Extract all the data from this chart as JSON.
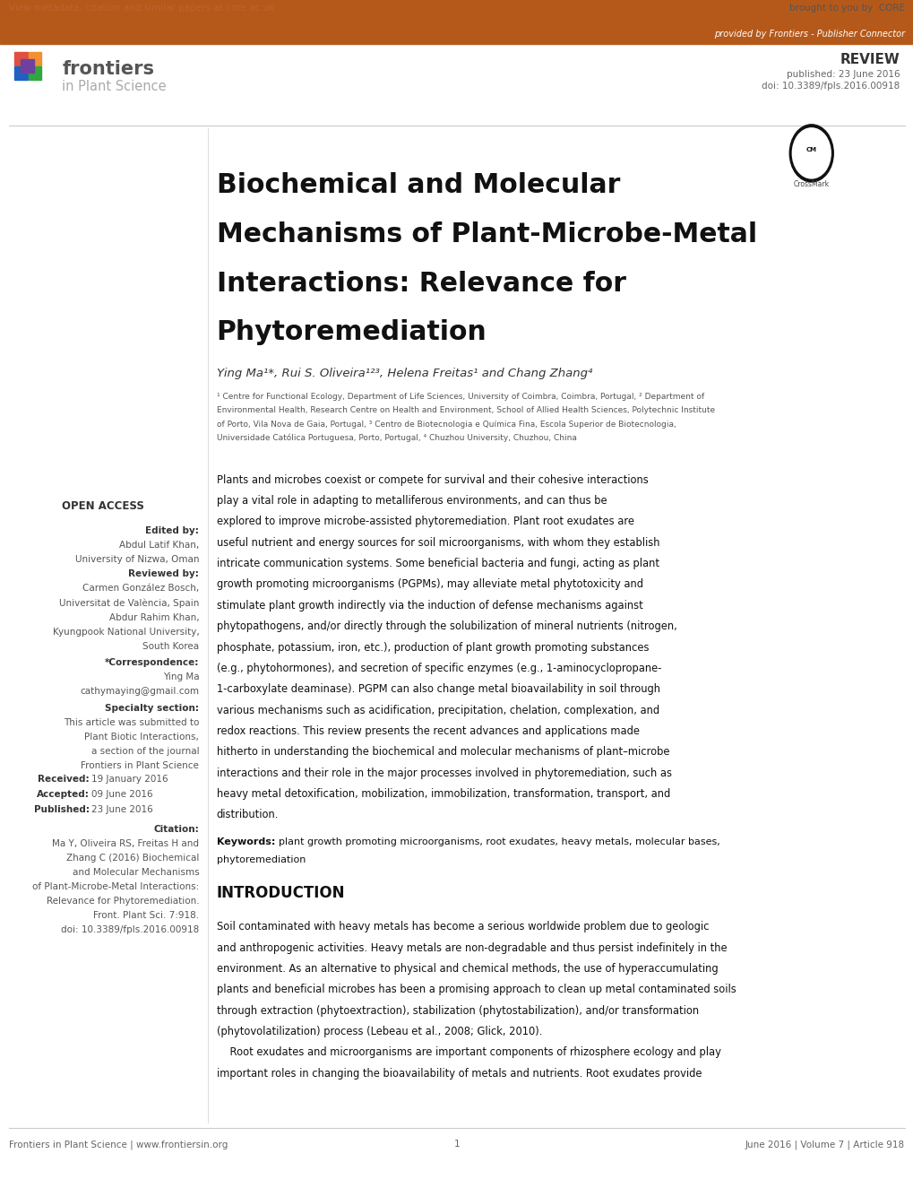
{
  "orange_bar_color": "#b5591a",
  "top_link_text": "View metadata, citation and similar papers at core.ac.uk",
  "provided_text": "provided by Frontiers - Publisher Connector",
  "review_label": "REVIEW",
  "published_text": "published: 23 June 2016",
  "doi_text": "doi: 10.3389/fpls.2016.00918",
  "journal_name": "frontiers",
  "journal_sub": "in Plant Science",
  "title_line1": "Biochemical and Molecular",
  "title_line2": "Mechanisms of Plant-Microbe-Metal",
  "title_line3": "Interactions: Relevance for",
  "title_line4": "Phytoremediation",
  "authors_text": "Ying Ma¹*, Rui S. Oliveira¹²³, Helena Freitas¹ and Chang Zhang⁴",
  "affil1": "¹ Centre for Functional Ecology, Department of Life Sciences, University of Coimbra, Coimbra, Portugal, ² Department of",
  "affil2": "Environmental Health, Research Centre on Health and Environment, School of Allied Health Sciences, Polytechnic Institute",
  "affil3": "of Porto, Vila Nova de Gaia, Portugal, ³ Centro de Biotecnologia e Química Fina, Escola Superior de Biotecnologia,",
  "affil4": "Universidade Católica Portuguesa, Porto, Portugal, ⁴ Chuzhou University, Chuzhou, China",
  "open_access_label": "OPEN ACCESS",
  "edited_by_label": "Edited by:",
  "editor_name": "Abdul Latif Khan,",
  "editor_affil": "University of Nizwa, Oman",
  "reviewed_by_label": "Reviewed by:",
  "reviewer1_name": "Carmen González Bosch,",
  "reviewer1_affil": "Universitat de València, Spain",
  "reviewer2_name": "Abdur Rahim Khan,",
  "reviewer2_affil1": "Kyungpook National University,",
  "reviewer2_affil2": "South Korea",
  "corr_label": "*Correspondence:",
  "corr_name": "Ying Ma",
  "corr_email": "cathymaying@gmail.com",
  "specialty_label": "Specialty section:",
  "specialty1": "This article was submitted to",
  "specialty2": "Plant Biotic Interactions,",
  "specialty3": "a section of the journal",
  "specialty4": "Frontiers in Plant Science",
  "received_label": "Received:",
  "received_date": "19 January 2016",
  "accepted_label": "Accepted:",
  "accepted_date": "09 June 2016",
  "published_label": "Published:",
  "published_date": "23 June 2016",
  "citation_label": "Citation:",
  "citation1": "Ma Y, Oliveira RS, Freitas H and",
  "citation2": "Zhang C (2016) Biochemical",
  "citation3": "and Molecular Mechanisms",
  "citation4": "of Plant-Microbe-Metal Interactions:",
  "citation5": "Relevance for Phytoremediation.",
  "citation6": "Front. Plant Sci. 7:918.",
  "citation7": "doi: 10.3389/fpls.2016.00918",
  "abstract_lines": [
    "Plants and microbes coexist or compete for survival and their cohesive interactions",
    "play a vital role in adapting to metalliferous environments, and can thus be",
    "explored to improve microbe-assisted phytoremediation. Plant root exudates are",
    "useful nutrient and energy sources for soil microorganisms, with whom they establish",
    "intricate communication systems. Some beneficial bacteria and fungi, acting as plant",
    "growth promoting microorganisms (PGPMs), may alleviate metal phytotoxicity and",
    "stimulate plant growth indirectly via the induction of defense mechanisms against",
    "phytopathogens, and/or directly through the solubilization of mineral nutrients (nitrogen,",
    "phosphate, potassium, iron, etc.), production of plant growth promoting substances",
    "(e.g., phytohormones), and secretion of specific enzymes (e.g., 1-aminocyclopropane-",
    "1-carboxylate deaminase). PGPM can also change metal bioavailability in soil through",
    "various mechanisms such as acidification, precipitation, chelation, complexation, and",
    "redox reactions. This review presents the recent advances and applications made",
    "hitherto in understanding the biochemical and molecular mechanisms of plant–microbe",
    "interactions and their role in the major processes involved in phytoremediation, such as",
    "heavy metal detoxification, mobilization, immobilization, transformation, transport, and",
    "distribution."
  ],
  "keywords_label": "Keywords:",
  "keywords_line1": "plant growth promoting microorganisms, root exudates, heavy metals, molecular bases,",
  "keywords_line2": "phytoremediation",
  "intro_title": "INTRODUCTION",
  "intro_lines": [
    "Soil contaminated with heavy metals has become a serious worldwide problem due to geologic",
    "and anthropogenic activities. Heavy metals are non-degradable and thus persist indefinitely in the",
    "environment. As an alternative to physical and chemical methods, the use of hyperaccumulating",
    "plants and beneficial microbes has been a promising approach to clean up metal contaminated soils",
    "through extraction (phytoextraction), stabilization (phytostabilization), and/or transformation",
    "(phytovolatilization) process (Lebeau et al., 2008; Glick, 2010).",
    "    Root exudates and microorganisms are important components of rhizosphere ecology and play",
    "important roles in changing the bioavailability of metals and nutrients. Root exudates provide"
  ],
  "footer_journal": "Frontiers in Plant Science | www.frontiersin.org",
  "footer_page": "1",
  "footer_date": "June 2016 | Volume 7 | Article 918",
  "bg_color": "#ffffff",
  "gray_color": "#666666"
}
